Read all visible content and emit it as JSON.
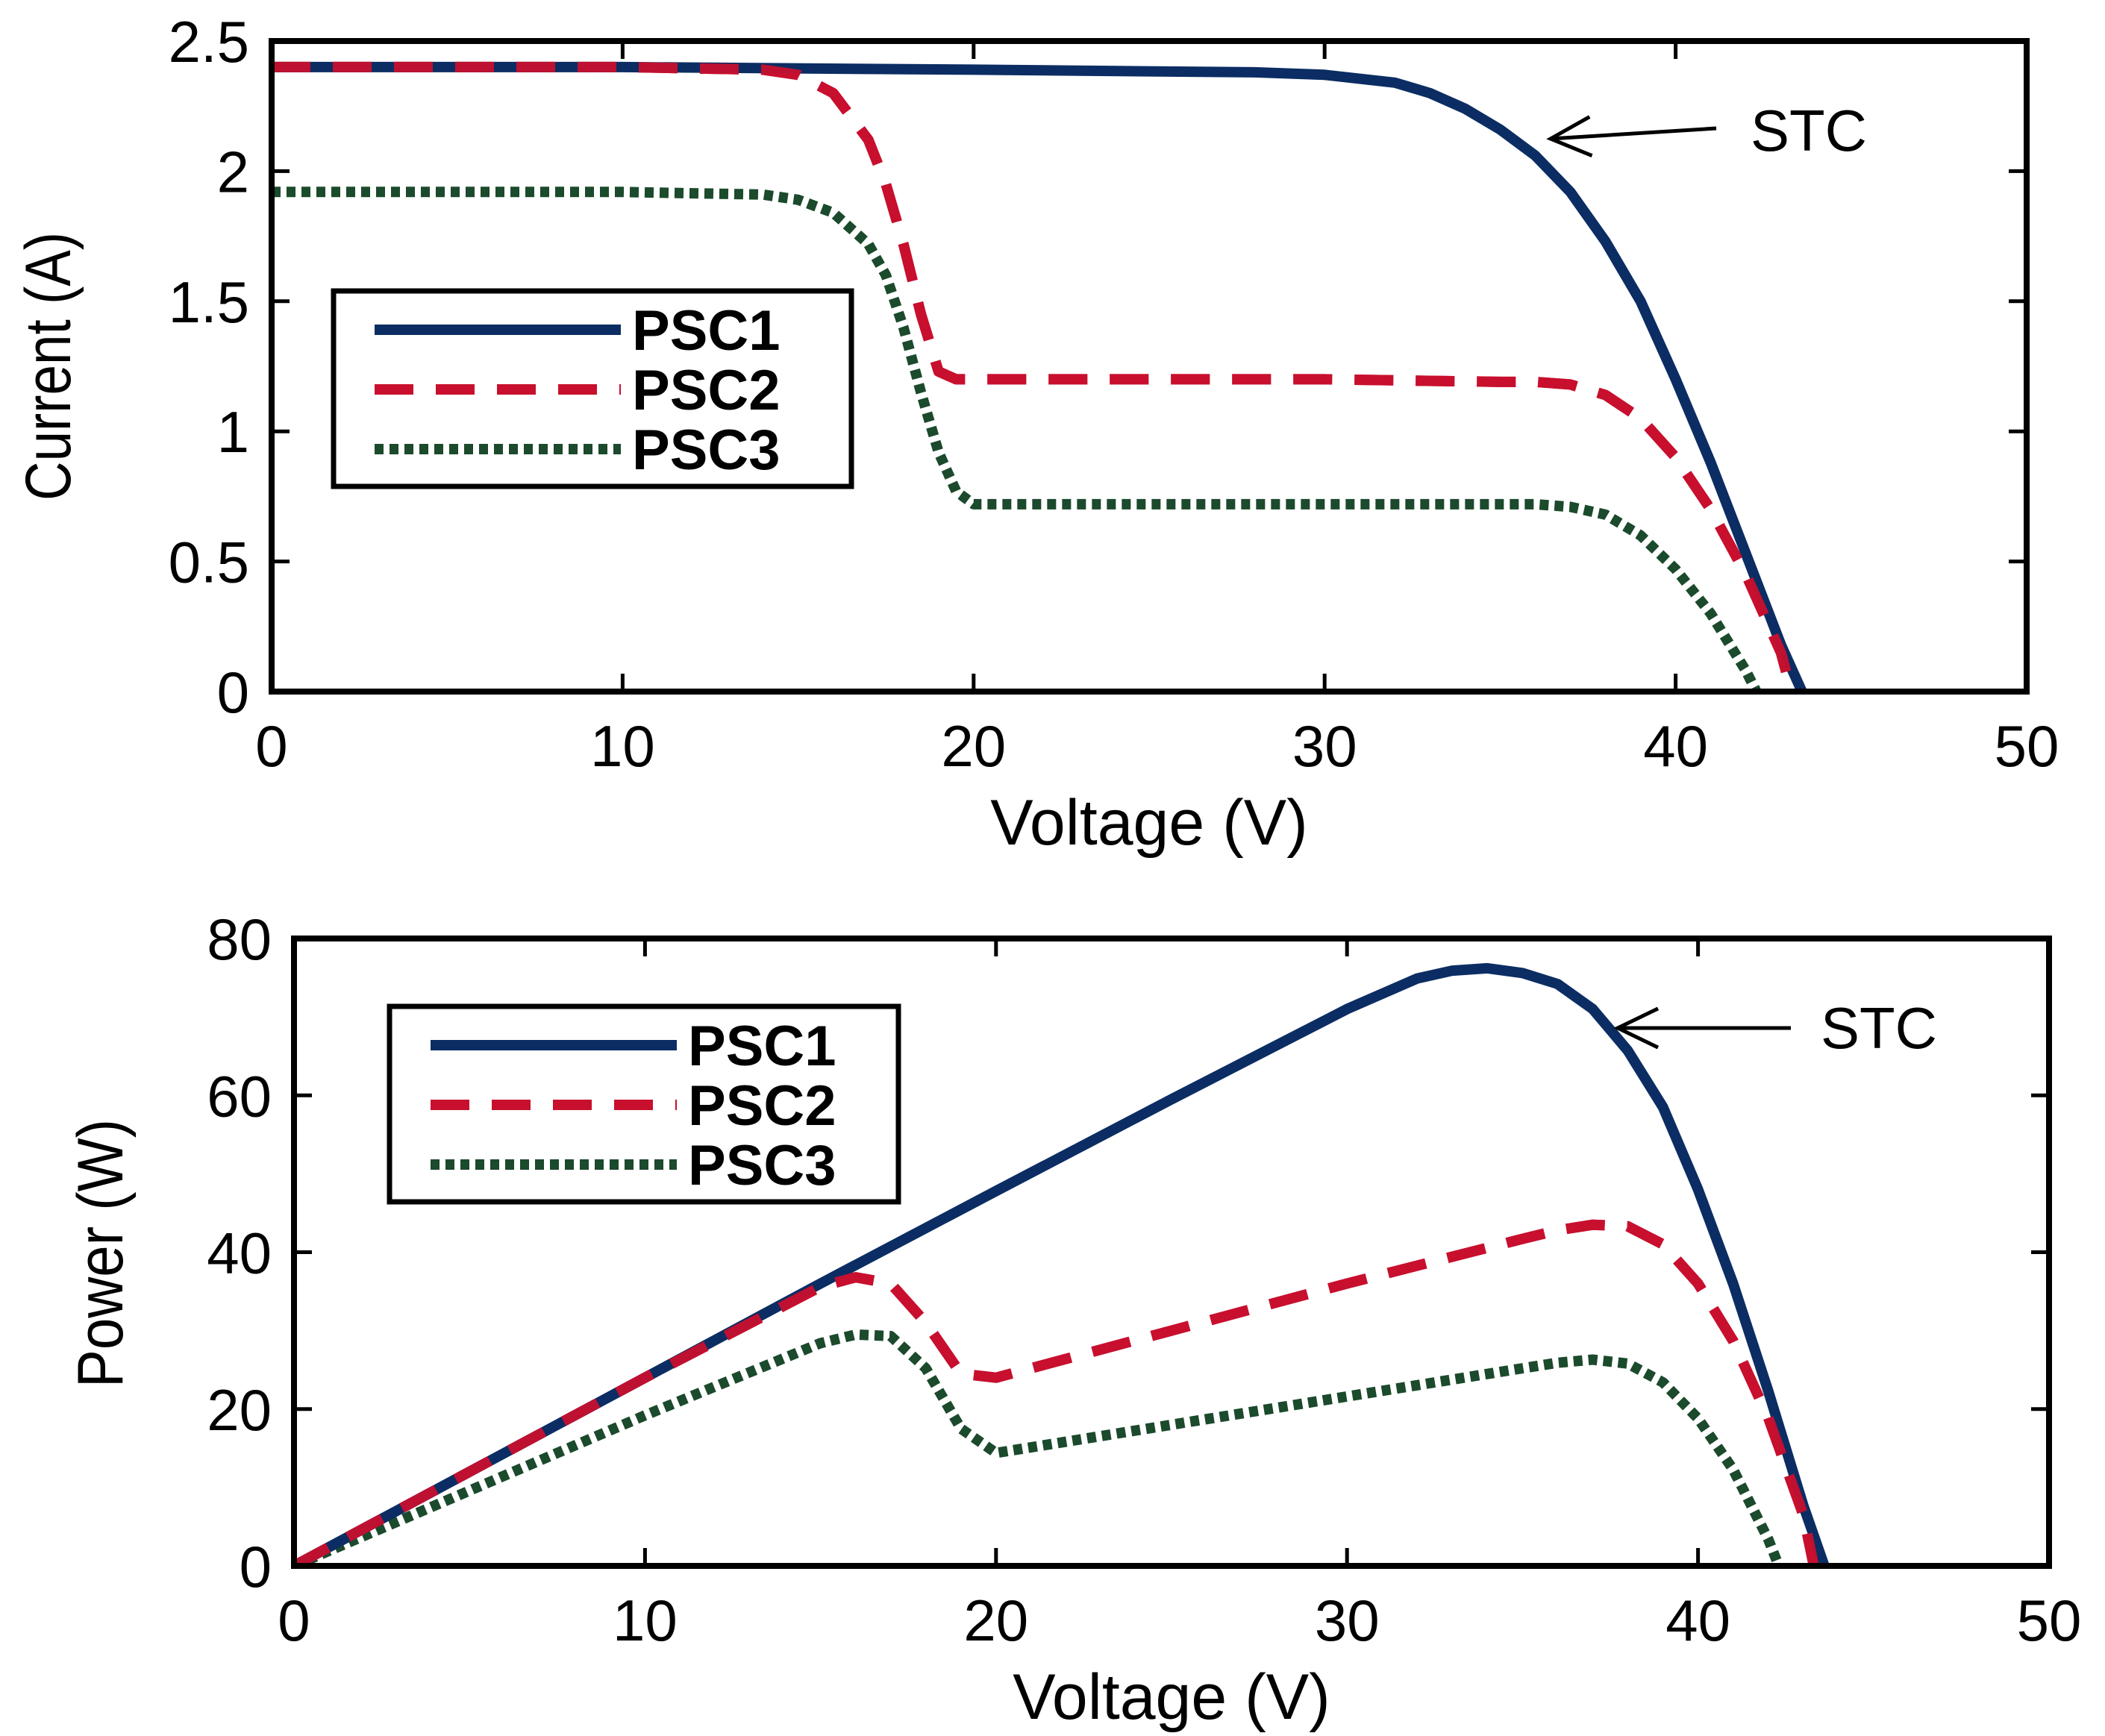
{
  "chart_data": [
    {
      "type": "line",
      "xlabel": "Voltage (V)",
      "ylabel": "Current (A)",
      "xlim": [
        0,
        50
      ],
      "ylim": [
        0,
        2.5
      ],
      "xticks": [
        "0",
        "10",
        "20",
        "30",
        "40",
        "50"
      ],
      "yticks": [
        "0",
        "0.5",
        "1",
        "1.5",
        "2",
        "2.5"
      ],
      "grid": false,
      "legend_position": "left-center",
      "annotation": {
        "text": "STC",
        "points_to": [
          36.5,
          2.1
        ]
      },
      "series": [
        {
          "name": "PSC1",
          "color": "#0b2d63",
          "style": "solid",
          "x": [
            0,
            10,
            20,
            28,
            30,
            32,
            33,
            34,
            35,
            36,
            37,
            38,
            39,
            40,
            41,
            42,
            43,
            43.6
          ],
          "y": [
            2.4,
            2.4,
            2.39,
            2.38,
            2.37,
            2.34,
            2.3,
            2.24,
            2.16,
            2.06,
            1.92,
            1.73,
            1.5,
            1.2,
            0.88,
            0.53,
            0.18,
            0
          ]
        },
        {
          "name": "PSC2",
          "color": "#c8102e",
          "style": "dashed",
          "x": [
            0,
            10,
            14,
            15,
            16,
            17,
            17.5,
            18,
            18.5,
            19,
            19.5,
            25,
            30,
            35,
            36,
            37,
            38,
            39,
            40,
            41,
            42,
            43,
            43.3
          ],
          "y": [
            2.4,
            2.4,
            2.39,
            2.37,
            2.3,
            2.12,
            1.95,
            1.72,
            1.45,
            1.23,
            1.2,
            1.2,
            1.2,
            1.19,
            1.19,
            1.18,
            1.14,
            1.05,
            0.9,
            0.7,
            0.45,
            0.15,
            0
          ]
        },
        {
          "name": "PSC3",
          "color": "#1b4a2c",
          "style": "dotted",
          "x": [
            0,
            10,
            14,
            15,
            16,
            17,
            17.5,
            18,
            18.5,
            19,
            19.5,
            20,
            25,
            30,
            35,
            36,
            37,
            38,
            39,
            40,
            41,
            42,
            42.3
          ],
          "y": [
            1.92,
            1.92,
            1.91,
            1.89,
            1.84,
            1.72,
            1.6,
            1.4,
            1.15,
            0.92,
            0.77,
            0.72,
            0.72,
            0.72,
            0.72,
            0.72,
            0.71,
            0.68,
            0.6,
            0.47,
            0.3,
            0.08,
            0
          ]
        }
      ]
    },
    {
      "type": "line",
      "xlabel": "Voltage (V)",
      "ylabel": "Power (W)",
      "xlim": [
        0,
        50
      ],
      "ylim": [
        0,
        80
      ],
      "xticks": [
        "0",
        "10",
        "20",
        "30",
        "40",
        "50"
      ],
      "yticks": [
        "0",
        "20",
        "40",
        "60",
        "80"
      ],
      "grid": false,
      "legend_position": "top-left",
      "annotation": {
        "text": "STC",
        "points_to": [
          37.2,
          68
        ]
      },
      "series": [
        {
          "name": "PSC1",
          "color": "#0b2d63",
          "style": "solid",
          "x": [
            0,
            5,
            10,
            15,
            20,
            25,
            30,
            32,
            33,
            34,
            35,
            36,
            37,
            38,
            39,
            40,
            41,
            42,
            43,
            43.6
          ],
          "y": [
            0,
            12,
            24,
            36,
            47.8,
            59.5,
            71,
            74.9,
            75.9,
            76.2,
            75.6,
            74.2,
            71,
            65.7,
            58.5,
            48,
            36,
            22.3,
            7.7,
            0
          ]
        },
        {
          "name": "PSC2",
          "color": "#c8102e",
          "style": "dashed",
          "x": [
            0,
            5,
            10,
            15,
            16,
            17,
            18,
            19,
            20,
            25,
            30,
            35,
            36,
            37,
            38,
            39,
            40,
            41,
            42,
            43,
            43.3
          ],
          "y": [
            0,
            12,
            24,
            35.6,
            36.8,
            36,
            31,
            24.5,
            24,
            30,
            36,
            41.7,
            42.8,
            43.5,
            43.3,
            41,
            36,
            28.7,
            18.9,
            6.5,
            0
          ]
        },
        {
          "name": "PSC3",
          "color": "#1b4a2c",
          "style": "dotted",
          "x": [
            0,
            5,
            10,
            15,
            16,
            17,
            18,
            19,
            20,
            25,
            30,
            35,
            36,
            37,
            38,
            39,
            40,
            41,
            42,
            42.3
          ],
          "y": [
            0,
            9.6,
            19.2,
            28.4,
            29.5,
            29.3,
            25.2,
            17.5,
            14.4,
            18,
            21.6,
            25.2,
            25.9,
            26.3,
            25.8,
            23.4,
            18.8,
            12.3,
            3.4,
            0
          ]
        }
      ]
    }
  ]
}
